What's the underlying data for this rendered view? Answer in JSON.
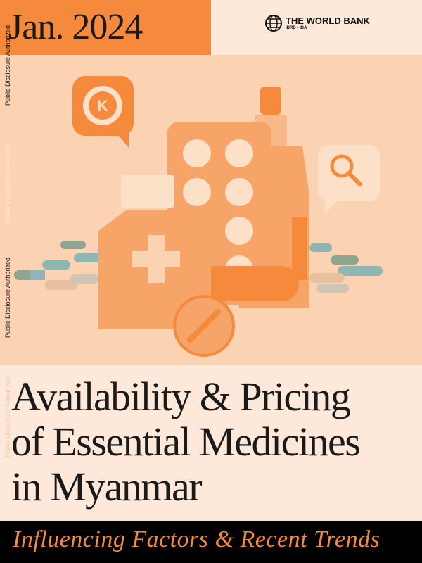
{
  "date": "Jan. 2024",
  "publisher": {
    "name": "THE WORLD BANK",
    "sub": "IBRD • IDA"
  },
  "disclosure": "Public Disclosure Authorized",
  "title": {
    "line1": "Availability & Pricing",
    "line2": "of Essential Medicines",
    "line3": "in Myanmar"
  },
  "subtitle": "Influencing Factors & Recent Trends",
  "colors": {
    "accent": "#f58a3c",
    "background": "#fbd3b2",
    "light": "#fde8da"
  },
  "icons": {
    "currency": "K"
  }
}
